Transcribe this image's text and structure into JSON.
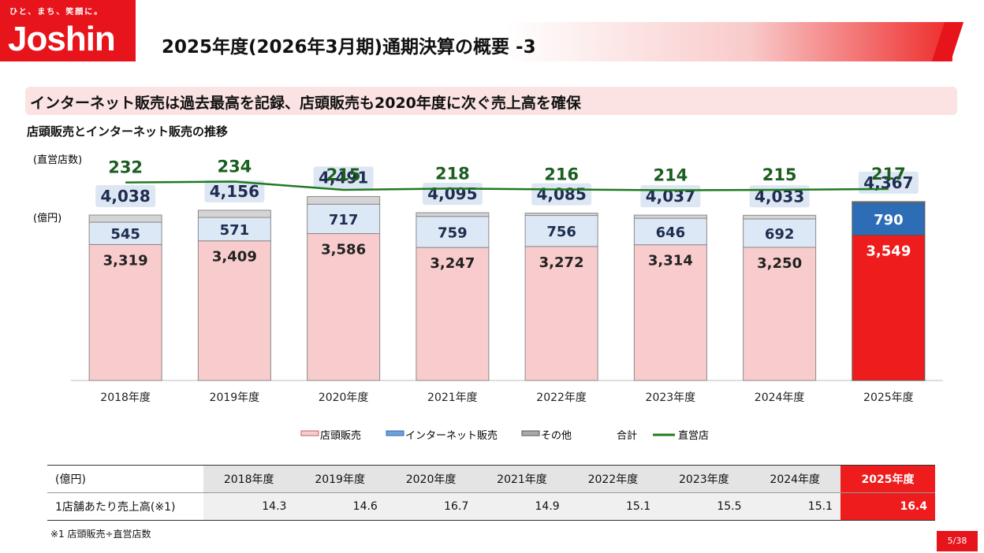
{
  "header": {
    "tagline": "ひと、まち、笑顔に。",
    "logo_text": "Joshin",
    "title": "2025年度(2026年3月期)通期決算の概要 -3"
  },
  "headline": "インターネット販売は過去最高を記録、店頭販売も2020年度に次ぐ売上高を確保",
  "subhead": "店頭販売とインターネット販売の推移",
  "chart_data": {
    "type": "bar",
    "stacked": true,
    "stores_label": "(直営店数)",
    "unit_label": "(億円)",
    "categories": [
      "2018年度",
      "2019年度",
      "2020年度",
      "2021年度",
      "2022年度",
      "2023年度",
      "2024年度",
      "2025年度"
    ],
    "series": [
      {
        "name": "店頭販売",
        "values": [
          3319,
          3409,
          3586,
          3247,
          3272,
          3314,
          3250,
          3549
        ],
        "color": "#f8cccc",
        "highlight_color": "#ee1c1c"
      },
      {
        "name": "インターネット販売",
        "values": [
          545,
          571,
          717,
          759,
          756,
          646,
          692,
          790
        ],
        "color": "#dce8f5",
        "highlight_color": "#2d6db5"
      },
      {
        "name": "その他",
        "values": [
          174,
          176,
          188,
          89,
          57,
          77,
          91,
          28
        ],
        "color": "#d4d4d4",
        "highlight_color": "#aaaaaa"
      }
    ],
    "totals": [
      4038,
      4156,
      4491,
      4095,
      4085,
      4037,
      4033,
      4367
    ],
    "totals_label": "合計",
    "line": {
      "name": "直営店",
      "values": [
        232,
        234,
        215,
        218,
        216,
        214,
        215,
        217
      ],
      "color": "#1f7a1f"
    },
    "highlight_index": 7,
    "legend_position": "bottom"
  },
  "table": {
    "unit": "(億円)",
    "years": [
      "2018年度",
      "2019年度",
      "2020年度",
      "2021年度",
      "2022年度",
      "2023年度",
      "2024年度",
      "2025年度"
    ],
    "row_label": "1店舗あたり売上高(※1)",
    "values": [
      "14.3",
      "14.6",
      "16.7",
      "14.9",
      "15.1",
      "15.5",
      "15.1",
      "16.4"
    ]
  },
  "footnote": "※1 店頭販売÷直営店数",
  "page": "5/38"
}
